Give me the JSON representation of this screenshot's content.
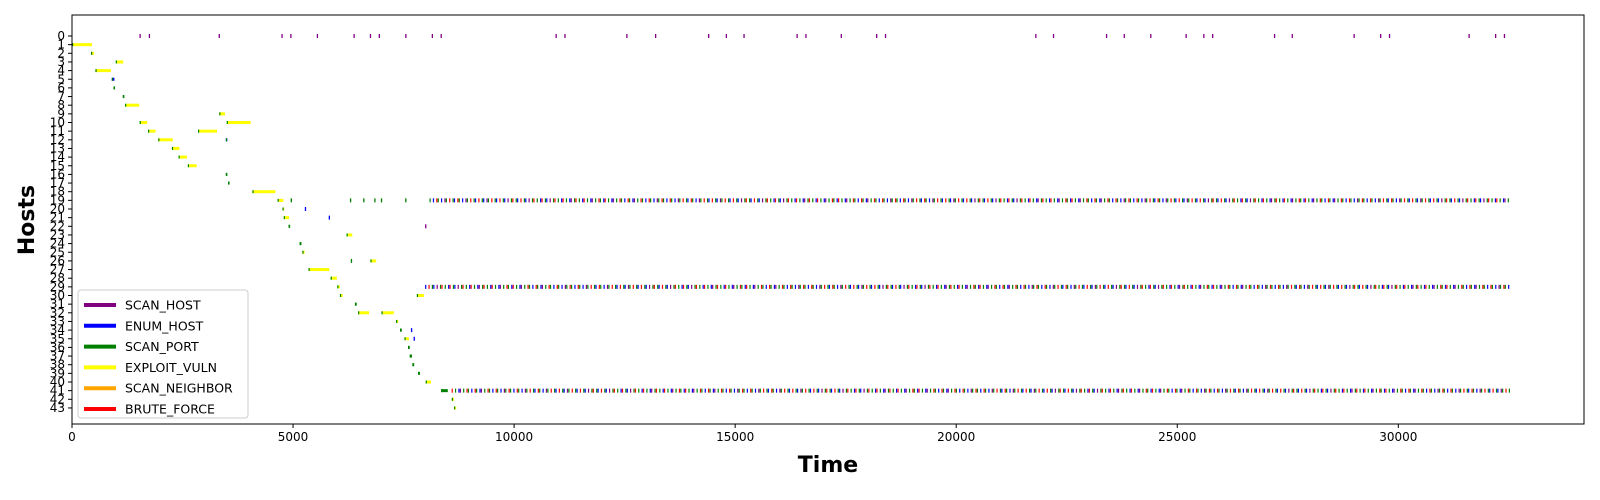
{
  "chart_data": {
    "type": "timeline",
    "xlabel": "Time",
    "ylabel": "Hosts",
    "xlim": [
      0,
      34200
    ],
    "ylim": [
      -1,
      45.5
    ],
    "x_ticks": [
      0,
      5000,
      10000,
      15000,
      20000,
      25000,
      30000
    ],
    "y_ticks": [
      0,
      1,
      2,
      3,
      4,
      5,
      6,
      7,
      8,
      9,
      10,
      11,
      12,
      13,
      14,
      15,
      16,
      17,
      18,
      19,
      20,
      21,
      22,
      23,
      24,
      25,
      26,
      27,
      28,
      29,
      30,
      31,
      32,
      33,
      34,
      35,
      36,
      37,
      38,
      39,
      40,
      41,
      42,
      43
    ],
    "legend_position": "lower-left",
    "series": [
      {
        "name": "SCAN_HOST",
        "color": "#800080"
      },
      {
        "name": "ENUM_HOST",
        "color": "#0000ff"
      },
      {
        "name": "SCAN_PORT",
        "color": "#008000"
      },
      {
        "name": "EXPLOIT_VULN",
        "color": "#ffff00"
      },
      {
        "name": "SCAN_NEIGHBOR",
        "color": "#ffa500"
      },
      {
        "name": "BRUTE_FORCE",
        "color": "#ff0000"
      }
    ],
    "events": [
      {
        "host": 1,
        "start": 0,
        "end": 450,
        "action": "EXPLOIT_VULN"
      },
      {
        "host": 2,
        "start": 430,
        "end": 500,
        "action": "EXPLOIT_VULN"
      },
      {
        "host": 3,
        "start": 990,
        "end": 1160,
        "action": "EXPLOIT_VULN"
      },
      {
        "host": 4,
        "start": 530,
        "end": 880,
        "action": "EXPLOIT_VULN"
      },
      {
        "host": 5,
        "start": 900,
        "end": 960,
        "action": "ENUM_HOST"
      },
      {
        "host": 6,
        "start": 940,
        "end": 970,
        "action": "SCAN_PORT"
      },
      {
        "host": 7,
        "start": 1150,
        "end": 1180,
        "action": "SCAN_PORT"
      },
      {
        "host": 8,
        "start": 1200,
        "end": 1520,
        "action": "EXPLOIT_VULN"
      },
      {
        "host": 9,
        "start": 3330,
        "end": 3460,
        "action": "EXPLOIT_VULN"
      },
      {
        "host": 10,
        "start": 1530,
        "end": 1700,
        "action": "EXPLOIT_VULN"
      },
      {
        "host": 10,
        "start": 3500,
        "end": 4040,
        "action": "EXPLOIT_VULN"
      },
      {
        "host": 11,
        "start": 1720,
        "end": 1890,
        "action": "EXPLOIT_VULN"
      },
      {
        "host": 11,
        "start": 2850,
        "end": 3280,
        "action": "EXPLOIT_VULN"
      },
      {
        "host": 12,
        "start": 1950,
        "end": 2280,
        "action": "EXPLOIT_VULN"
      },
      {
        "host": 12,
        "start": 3480,
        "end": 3510,
        "action": "ENUM_HOST"
      },
      {
        "host": 13,
        "start": 2260,
        "end": 2430,
        "action": "EXPLOIT_VULN"
      },
      {
        "host": 14,
        "start": 2410,
        "end": 2600,
        "action": "EXPLOIT_VULN"
      },
      {
        "host": 15,
        "start": 2620,
        "end": 2820,
        "action": "EXPLOIT_VULN"
      },
      {
        "host": 16,
        "start": 3480,
        "end": 3510,
        "action": "SCAN_PORT"
      },
      {
        "host": 17,
        "start": 3530,
        "end": 3560,
        "action": "SCAN_PORT"
      },
      {
        "host": 18,
        "start": 4080,
        "end": 4600,
        "action": "EXPLOIT_VULN"
      },
      {
        "host": 19,
        "start": 4650,
        "end": 4780,
        "action": "EXPLOIT_VULN"
      },
      {
        "host": 20,
        "start": 4760,
        "end": 4800,
        "action": "EXPLOIT_VULN"
      },
      {
        "host": 21,
        "start": 4790,
        "end": 4910,
        "action": "EXPLOIT_VULN"
      },
      {
        "host": 22,
        "start": 4900,
        "end": 4930,
        "action": "SCAN_PORT"
      },
      {
        "host": 23,
        "start": 6210,
        "end": 6340,
        "action": "EXPLOIT_VULN"
      },
      {
        "host": 24,
        "start": 5150,
        "end": 5190,
        "action": "SCAN_PORT"
      },
      {
        "host": 25,
        "start": 5210,
        "end": 5260,
        "action": "EXPLOIT_VULN"
      },
      {
        "host": 26,
        "start": 6750,
        "end": 6880,
        "action": "EXPLOIT_VULN"
      },
      {
        "host": 27,
        "start": 5350,
        "end": 5820,
        "action": "EXPLOIT_VULN"
      },
      {
        "host": 28,
        "start": 5850,
        "end": 5990,
        "action": "EXPLOIT_VULN"
      },
      {
        "host": 29,
        "start": 6000,
        "end": 6060,
        "action": "EXPLOIT_VULN"
      },
      {
        "host": 30,
        "start": 6060,
        "end": 6120,
        "action": "EXPLOIT_VULN"
      },
      {
        "host": 30,
        "start": 7800,
        "end": 7960,
        "action": "EXPLOIT_VULN"
      },
      {
        "host": 31,
        "start": 6400,
        "end": 6440,
        "action": "SCAN_PORT"
      },
      {
        "host": 32,
        "start": 6470,
        "end": 6720,
        "action": "EXPLOIT_VULN"
      },
      {
        "host": 32,
        "start": 7000,
        "end": 7280,
        "action": "EXPLOIT_VULN"
      },
      {
        "host": 33,
        "start": 7330,
        "end": 7380,
        "action": "EXPLOIT_VULN"
      },
      {
        "host": 34,
        "start": 7420,
        "end": 7460,
        "action": "SCAN_PORT"
      },
      {
        "host": 35,
        "start": 7520,
        "end": 7620,
        "action": "EXPLOIT_VULN"
      },
      {
        "host": 36,
        "start": 7600,
        "end": 7640,
        "action": "SCAN_PORT"
      },
      {
        "host": 37,
        "start": 7640,
        "end": 7690,
        "action": "SCAN_PORT"
      },
      {
        "host": 38,
        "start": 7700,
        "end": 7740,
        "action": "SCAN_PORT"
      },
      {
        "host": 39,
        "start": 7830,
        "end": 7870,
        "action": "SCAN_PORT"
      },
      {
        "host": 40,
        "start": 8000,
        "end": 8120,
        "action": "EXPLOIT_VULN"
      },
      {
        "host": 41,
        "start": 8350,
        "end": 8500,
        "action": "SCAN_PORT"
      },
      {
        "host": 42,
        "start": 8590,
        "end": 8640,
        "action": "EXPLOIT_VULN"
      },
      {
        "host": 43,
        "start": 8640,
        "end": 8690,
        "action": "EXPLOIT_VULN"
      }
    ],
    "points": [
      {
        "host": 0,
        "t": [
          1540,
          1750,
          3330,
          4750,
          4950,
          5550,
          6380,
          6750,
          6950,
          7550,
          8150,
          8350,
          10950,
          11150,
          12550,
          13200,
          14400,
          14800,
          15200,
          16400,
          16600,
          17400,
          18200,
          18400,
          21800,
          22200,
          23400,
          23800,
          24400,
          25200,
          25600,
          25800,
          27200,
          27600,
          29000,
          29600,
          29800,
          31600,
          32200,
          32400
        ],
        "action": "SCAN_HOST"
      },
      {
        "host": 20,
        "t": [
          5280
        ],
        "action": "ENUM_HOST"
      },
      {
        "host": 21,
        "t": [
          5820
        ],
        "action": "ENUM_HOST"
      },
      {
        "host": 22,
        "t": [
          8000
        ],
        "action": "SCAN_HOST"
      },
      {
        "host": 26,
        "t": [
          6320
        ],
        "action": "SCAN_PORT"
      },
      {
        "host": 34,
        "t": [
          7680
        ],
        "action": "ENUM_HOST"
      },
      {
        "host": 35,
        "t": [
          7740
        ],
        "action": "ENUM_HOST"
      },
      {
        "host": 19,
        "t": [
          4960,
          6300,
          6600,
          6850,
          7000,
          7550
        ],
        "action": "SCAN_PORT"
      }
    ],
    "dense_rows": [
      {
        "host": 19,
        "start": 8100,
        "end": 32500,
        "step": 60
      },
      {
        "host": 29,
        "start": 8000,
        "end": 32500,
        "step": 60
      },
      {
        "host": 41,
        "start": 8600,
        "end": 32500,
        "step": 60
      }
    ]
  }
}
